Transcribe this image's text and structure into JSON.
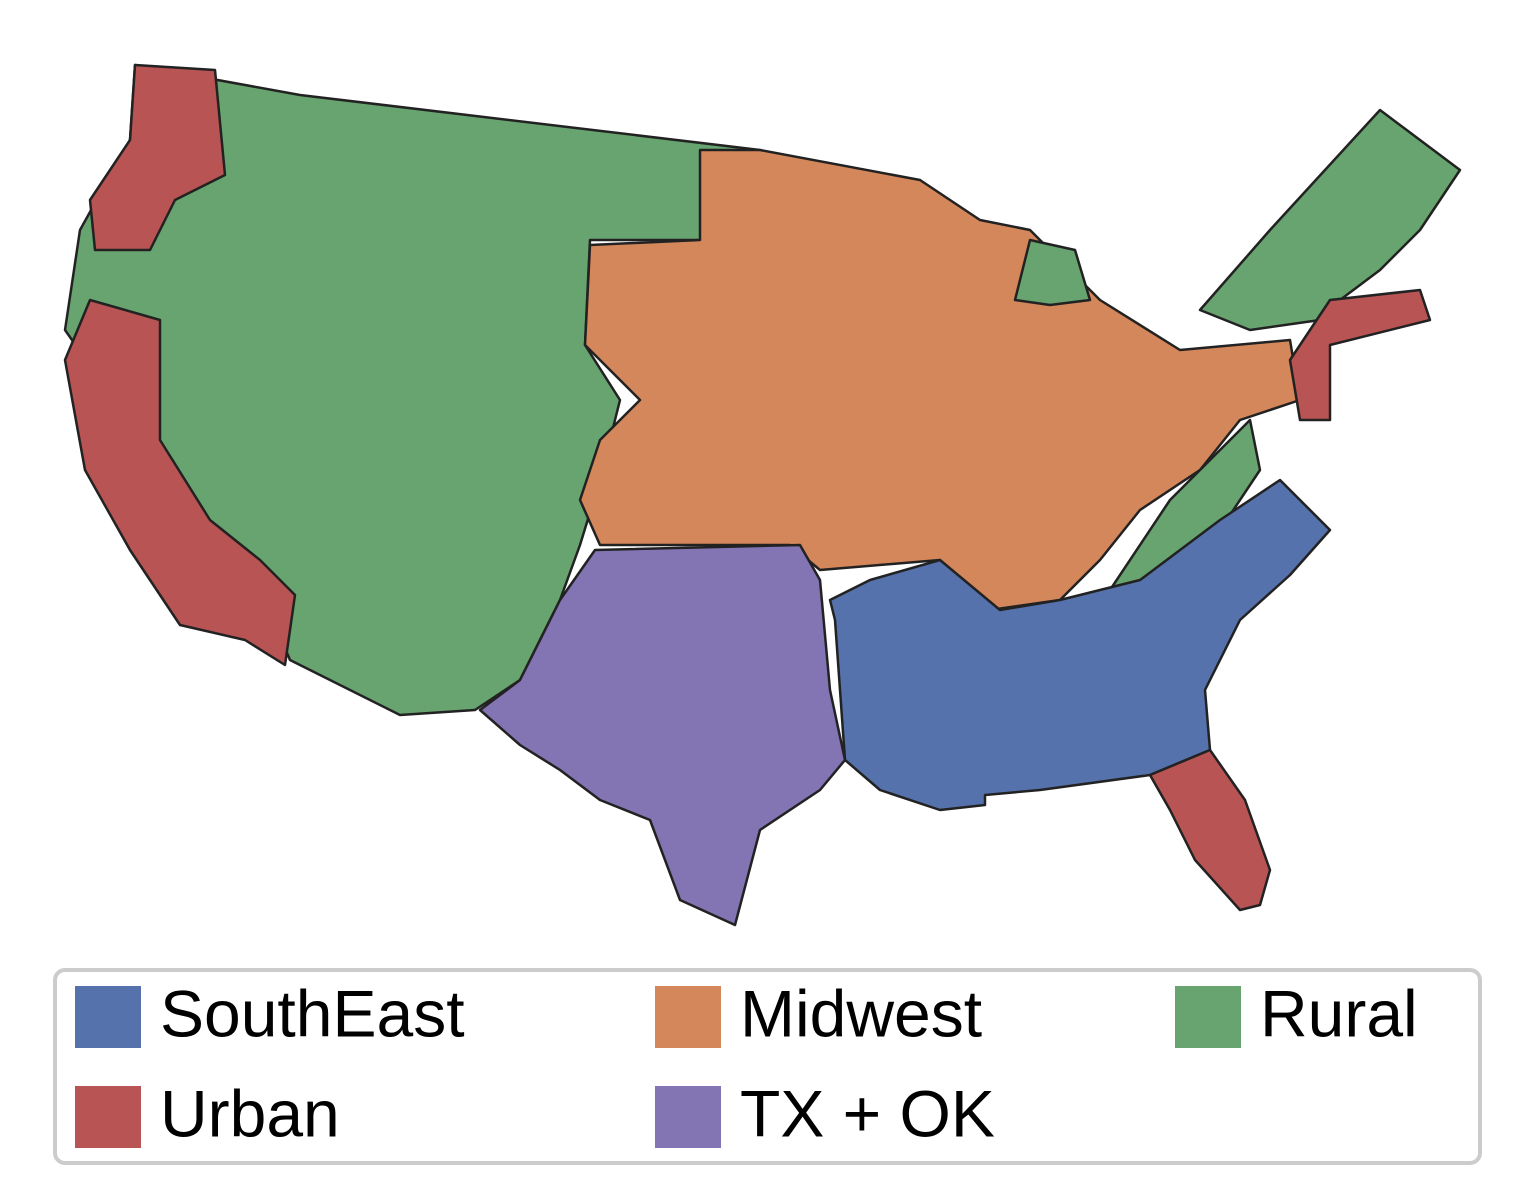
{
  "legend": {
    "items": [
      {
        "label": "SouthEast",
        "color": "#5572ac"
      },
      {
        "label": "Midwest",
        "color": "#d4875a"
      },
      {
        "label": "Rural",
        "color": "#68a46f"
      },
      {
        "label": "Urban",
        "color": "#b85454"
      },
      {
        "label": "TX + OK",
        "color": "#8374b4"
      }
    ]
  }
}
